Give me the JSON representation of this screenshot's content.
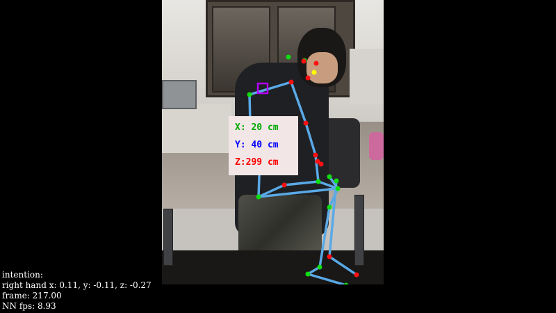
{
  "overlay_box": {
    "x_text": "X: 20 cm",
    "y_text": "Y: 40 cm",
    "z_text": "Z:299 cm",
    "x_color": "#00aa00",
    "y_color": "#0000ff",
    "z_color": "#ff0000"
  },
  "status_lines": {
    "intention": "intention:",
    "right_hand": "right hand x: 0.11, y: -0.11, z: -0.27",
    "frame": "frame: 217.00",
    "fps": "NN fps: 8.93"
  },
  "colors": {
    "skeleton": "#5aa9e6",
    "left_joint": "#10dd10",
    "right_joint": "#ff1010",
    "eye": "#ffff00",
    "target_marker": "#b400ff",
    "background": "#000000"
  }
}
